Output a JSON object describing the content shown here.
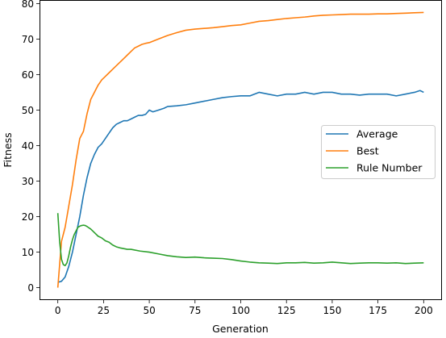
{
  "chart_data": {
    "type": "line",
    "title": "",
    "xlabel": "Generation",
    "ylabel": "Fitness",
    "xlim": [
      -10,
      210
    ],
    "ylim": [
      -3.5,
      81
    ],
    "x_ticks": [
      0,
      25,
      50,
      75,
      100,
      125,
      150,
      175,
      200
    ],
    "y_ticks": [
      0,
      10,
      20,
      30,
      40,
      50,
      60,
      70,
      80
    ],
    "grid": false,
    "legend": {
      "position": "right"
    },
    "series": [
      {
        "name": "Average",
        "color": "#1f77b4",
        "points": [
          [
            0,
            1.5
          ],
          [
            2,
            1.8
          ],
          [
            4,
            3
          ],
          [
            6,
            6
          ],
          [
            8,
            10
          ],
          [
            10,
            15
          ],
          [
            12,
            20
          ],
          [
            14,
            26
          ],
          [
            16,
            31
          ],
          [
            18,
            35
          ],
          [
            20,
            37.5
          ],
          [
            22,
            39.5
          ],
          [
            24,
            40.5
          ],
          [
            26,
            42
          ],
          [
            28,
            43.5
          ],
          [
            30,
            45
          ],
          [
            32,
            46
          ],
          [
            34,
            46.5
          ],
          [
            36,
            47
          ],
          [
            38,
            47
          ],
          [
            40,
            47.5
          ],
          [
            42,
            48
          ],
          [
            44,
            48.5
          ],
          [
            46,
            48.5
          ],
          [
            48,
            48.8
          ],
          [
            50,
            50
          ],
          [
            52,
            49.5
          ],
          [
            55,
            50
          ],
          [
            58,
            50.5
          ],
          [
            60,
            51
          ],
          [
            65,
            51.2
          ],
          [
            70,
            51.5
          ],
          [
            75,
            52
          ],
          [
            80,
            52.5
          ],
          [
            85,
            53
          ],
          [
            90,
            53.5
          ],
          [
            95,
            53.8
          ],
          [
            100,
            54
          ],
          [
            105,
            54
          ],
          [
            110,
            55
          ],
          [
            115,
            54.5
          ],
          [
            120,
            54
          ],
          [
            125,
            54.5
          ],
          [
            130,
            54.5
          ],
          [
            135,
            55
          ],
          [
            140,
            54.5
          ],
          [
            145,
            55
          ],
          [
            150,
            55
          ],
          [
            155,
            54.5
          ],
          [
            160,
            54.5
          ],
          [
            165,
            54.2
          ],
          [
            170,
            54.5
          ],
          [
            175,
            54.5
          ],
          [
            180,
            54.5
          ],
          [
            185,
            54
          ],
          [
            190,
            54.5
          ],
          [
            195,
            55
          ],
          [
            198,
            55.5
          ],
          [
            200,
            55
          ]
        ]
      },
      {
        "name": "Best",
        "color": "#ff7f0e",
        "points": [
          [
            0,
            0
          ],
          [
            2,
            13
          ],
          [
            4,
            17
          ],
          [
            6,
            23
          ],
          [
            8,
            29
          ],
          [
            10,
            36
          ],
          [
            12,
            42
          ],
          [
            14,
            44
          ],
          [
            16,
            49
          ],
          [
            18,
            53
          ],
          [
            20,
            55
          ],
          [
            22,
            57
          ],
          [
            24,
            58.5
          ],
          [
            26,
            59.5
          ],
          [
            28,
            60.5
          ],
          [
            30,
            61.5
          ],
          [
            32,
            62.5
          ],
          [
            34,
            63.5
          ],
          [
            36,
            64.5
          ],
          [
            38,
            65.5
          ],
          [
            40,
            66.5
          ],
          [
            42,
            67.5
          ],
          [
            44,
            68
          ],
          [
            46,
            68.5
          ],
          [
            48,
            68.8
          ],
          [
            50,
            69
          ],
          [
            55,
            70
          ],
          [
            60,
            71
          ],
          [
            65,
            71.8
          ],
          [
            70,
            72.5
          ],
          [
            75,
            72.8
          ],
          [
            80,
            73
          ],
          [
            85,
            73.2
          ],
          [
            90,
            73.5
          ],
          [
            95,
            73.8
          ],
          [
            100,
            74
          ],
          [
            105,
            74.5
          ],
          [
            110,
            75
          ],
          [
            115,
            75.2
          ],
          [
            120,
            75.5
          ],
          [
            125,
            75.8
          ],
          [
            130,
            76
          ],
          [
            135,
            76.2
          ],
          [
            140,
            76.5
          ],
          [
            145,
            76.7
          ],
          [
            150,
            76.8
          ],
          [
            155,
            76.9
          ],
          [
            160,
            77
          ],
          [
            165,
            77
          ],
          [
            170,
            77
          ],
          [
            175,
            77.1
          ],
          [
            180,
            77.1
          ],
          [
            185,
            77.2
          ],
          [
            190,
            77.3
          ],
          [
            195,
            77.4
          ],
          [
            200,
            77.5
          ]
        ]
      },
      {
        "name": "Rule Number",
        "color": "#2ca02c",
        "points": [
          [
            0,
            21
          ],
          [
            1,
            13
          ],
          [
            2,
            8
          ],
          [
            3,
            6.5
          ],
          [
            4,
            6.2
          ],
          [
            5,
            7
          ],
          [
            6,
            9
          ],
          [
            7,
            11.5
          ],
          [
            8,
            13.5
          ],
          [
            9,
            15
          ],
          [
            10,
            16
          ],
          [
            11,
            17
          ],
          [
            12,
            17.3
          ],
          [
            13,
            17.5
          ],
          [
            14,
            17.6
          ],
          [
            15,
            17.5
          ],
          [
            16,
            17.2
          ],
          [
            18,
            16.5
          ],
          [
            20,
            15.5
          ],
          [
            22,
            14.5
          ],
          [
            24,
            14
          ],
          [
            26,
            13.2
          ],
          [
            28,
            12.8
          ],
          [
            30,
            12
          ],
          [
            32,
            11.5
          ],
          [
            34,
            11.2
          ],
          [
            36,
            11
          ],
          [
            38,
            10.8
          ],
          [
            40,
            10.8
          ],
          [
            45,
            10.3
          ],
          [
            50,
            10
          ],
          [
            55,
            9.5
          ],
          [
            60,
            9
          ],
          [
            65,
            8.7
          ],
          [
            70,
            8.5
          ],
          [
            75,
            8.6
          ],
          [
            80,
            8.4
          ],
          [
            85,
            8.3
          ],
          [
            90,
            8.2
          ],
          [
            95,
            7.9
          ],
          [
            100,
            7.5
          ],
          [
            105,
            7.2
          ],
          [
            110,
            7
          ],
          [
            115,
            6.9
          ],
          [
            120,
            6.8
          ],
          [
            125,
            7
          ],
          [
            130,
            7
          ],
          [
            135,
            7.1
          ],
          [
            140,
            6.9
          ],
          [
            145,
            7
          ],
          [
            150,
            7.2
          ],
          [
            155,
            7
          ],
          [
            160,
            6.8
          ],
          [
            165,
            6.9
          ],
          [
            170,
            7
          ],
          [
            175,
            7
          ],
          [
            180,
            6.9
          ],
          [
            185,
            7
          ],
          [
            190,
            6.8
          ],
          [
            195,
            6.9
          ],
          [
            200,
            7
          ]
        ]
      }
    ]
  }
}
